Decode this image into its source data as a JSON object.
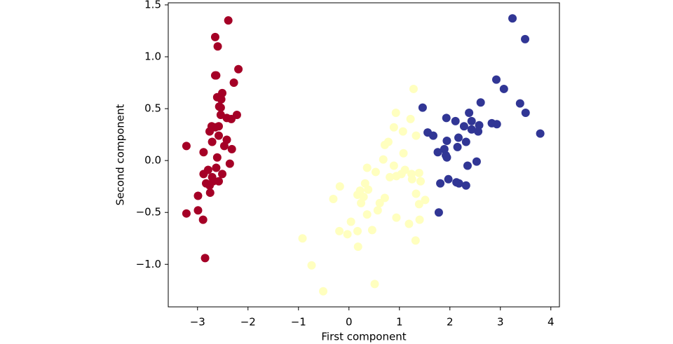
{
  "chart_data": {
    "type": "scatter",
    "xlabel": "First component",
    "ylabel": "Second component",
    "xlim": [
      -3.58,
      4.17
    ],
    "ylim": [
      -1.41,
      1.52
    ],
    "xticks": [
      {
        "value": -3,
        "label": "−3"
      },
      {
        "value": -2,
        "label": "−2"
      },
      {
        "value": -1,
        "label": "−1"
      },
      0,
      1,
      2,
      3,
      4
    ],
    "yticks": [
      1.5,
      {
        "value": 1,
        "label": "1.0"
      },
      0.5,
      {
        "value": 0,
        "label": "0.0"
      },
      {
        "value": -0.5,
        "label": "−0.5"
      },
      {
        "value": -1,
        "label": "−1.0"
      }
    ],
    "series": [
      {
        "color": "#a50026",
        "x": [
          -2.39,
          -2.65,
          -2.6,
          -2.19,
          -2.65,
          -2.63,
          -2.28,
          -2.51,
          -2.61,
          -2.53,
          -2.57,
          -2.54,
          -2.22,
          -2.54,
          -2.33,
          -2.42,
          -2.72,
          -2.65,
          -2.58,
          -2.76,
          -2.58,
          -2.42,
          -2.71,
          -2.47,
          -2.32,
          -3.22,
          -2.88,
          -2.61,
          -2.36,
          -2.63,
          -2.79,
          -2.88,
          -2.51,
          -2.71,
          -2.69,
          -2.83,
          -2.58,
          -2.76,
          -2.75,
          -2.99,
          -3.22,
          -2.99,
          -2.89,
          -2.85
        ],
        "values": [
          1.35,
          1.19,
          1.1,
          0.88,
          0.82,
          0.82,
          0.75,
          0.65,
          0.61,
          0.59,
          0.52,
          0.51,
          0.44,
          0.44,
          0.4,
          0.41,
          0.33,
          0.32,
          0.33,
          0.28,
          0.24,
          0.2,
          0.18,
          0.14,
          0.11,
          0.14,
          0.08,
          0.03,
          -0.03,
          -0.07,
          -0.09,
          -0.13,
          -0.13,
          -0.16,
          -0.2,
          -0.22,
          -0.2,
          -0.24,
          -0.31,
          -0.34,
          -0.51,
          -0.48,
          -0.57,
          -0.94
        ]
      },
      {
        "color": "#ffffbf",
        "x": [
          1.28,
          0.93,
          1.22,
          0.89,
          1.07,
          1.33,
          0.78,
          0.71,
          1.08,
          0.68,
          0.36,
          0.53,
          0.89,
          1.11,
          1.04,
          0.94,
          0.81,
          1.24,
          1.39,
          1.25,
          1.42,
          -0.18,
          0.32,
          0.22,
          0.38,
          0.17,
          0.29,
          -0.31,
          0.71,
          1.33,
          1.51,
          1.39,
          0.24,
          0.61,
          0.57,
          0.36,
          0.04,
          0.94,
          1.4,
          1.19,
          -0.19,
          -0.03,
          0.17,
          0.46,
          1.32,
          0.18,
          -0.92,
          -0.74,
          -0.51,
          0.51
        ],
        "values": [
          0.69,
          0.46,
          0.4,
          0.32,
          0.28,
          0.24,
          0.18,
          0.15,
          0.07,
          0.01,
          -0.07,
          -0.11,
          -0.05,
          -0.09,
          -0.13,
          -0.15,
          -0.16,
          -0.13,
          -0.12,
          -0.18,
          -0.2,
          -0.25,
          -0.22,
          -0.29,
          -0.28,
          -0.33,
          -0.35,
          -0.37,
          -0.36,
          -0.32,
          -0.38,
          -0.42,
          -0.41,
          -0.41,
          -0.48,
          -0.52,
          -0.59,
          -0.55,
          -0.57,
          -0.61,
          -0.68,
          -0.71,
          -0.68,
          -0.67,
          -0.77,
          -0.83,
          -0.75,
          -1.01,
          -1.26,
          -1.19
        ]
      },
      {
        "color": "#313695",
        "x": [
          3.24,
          3.49,
          2.92,
          3.07,
          2.61,
          3.39,
          1.46,
          3.5,
          2.38,
          1.93,
          2.11,
          2.43,
          2.83,
          2.93,
          2.28,
          2.58,
          1.56,
          1.67,
          3.79,
          2.43,
          2.56,
          2.17,
          1.94,
          2.32,
          2.15,
          1.76,
          1.89,
          1.92,
          1.94,
          2.35,
          2.53,
          1.81,
          1.97,
          2.13,
          2.18,
          2.32,
          1.78
        ],
        "values": [
          1.37,
          1.17,
          0.78,
          0.69,
          0.56,
          0.55,
          0.51,
          0.46,
          0.46,
          0.41,
          0.38,
          0.38,
          0.36,
          0.35,
          0.33,
          0.34,
          0.27,
          0.24,
          0.26,
          0.3,
          0.28,
          0.22,
          0.19,
          0.18,
          0.13,
          0.08,
          0.11,
          0.05,
          0.03,
          -0.05,
          -0.01,
          -0.22,
          -0.18,
          -0.21,
          -0.22,
          -0.24,
          -0.5
        ]
      }
    ]
  }
}
